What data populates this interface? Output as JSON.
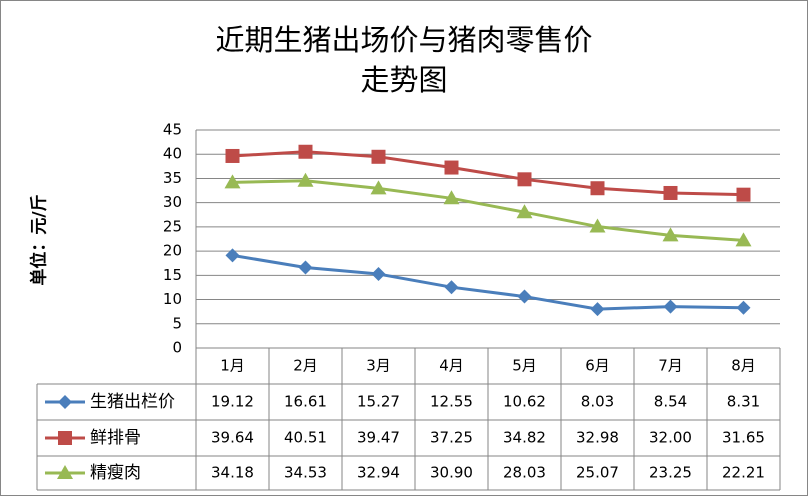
{
  "chart_data": {
    "type": "line",
    "title": [
      "近期生猪出场价与猪肉零售价",
      "走势图"
    ],
    "y_label": "单位：元/斤",
    "categories": [
      "1月",
      "2月",
      "3月",
      "4月",
      "5月",
      "6月",
      "7月",
      "8月"
    ],
    "series": [
      {
        "name": "生猪出栏价",
        "color": "#4a7ebb",
        "marker": "diamond",
        "values": [
          19.12,
          16.61,
          15.27,
          12.55,
          10.62,
          8.03,
          8.54,
          8.31
        ],
        "value_labels": [
          "19.12",
          "16.61",
          "15.27",
          "12.55",
          "10.62",
          "8.03",
          "8.54",
          "8.31"
        ]
      },
      {
        "name": "鲜排骨",
        "color": "#be4b48",
        "marker": "square",
        "values": [
          39.64,
          40.51,
          39.47,
          37.25,
          34.82,
          32.98,
          32,
          31.65
        ],
        "value_labels": [
          "39.64",
          "40.51",
          "39.47",
          "37.25",
          "34.82",
          "32.98",
          "32.00",
          "31.65"
        ]
      },
      {
        "name": "精瘦肉",
        "color": "#98b954",
        "marker": "triangle",
        "values": [
          34.18,
          34.53,
          32.94,
          30.9,
          28.03,
          25.07,
          23.25,
          22.21
        ],
        "value_labels": [
          "34.18",
          "34.53",
          "32.94",
          "30.90",
          "28.03",
          "25.07",
          "23.25",
          "22.21"
        ]
      }
    ],
    "ylim": [
      0,
      45
    ],
    "yticks": [
      0,
      5,
      10,
      15,
      20,
      25,
      30,
      35,
      40,
      45
    ],
    "grid": true
  }
}
